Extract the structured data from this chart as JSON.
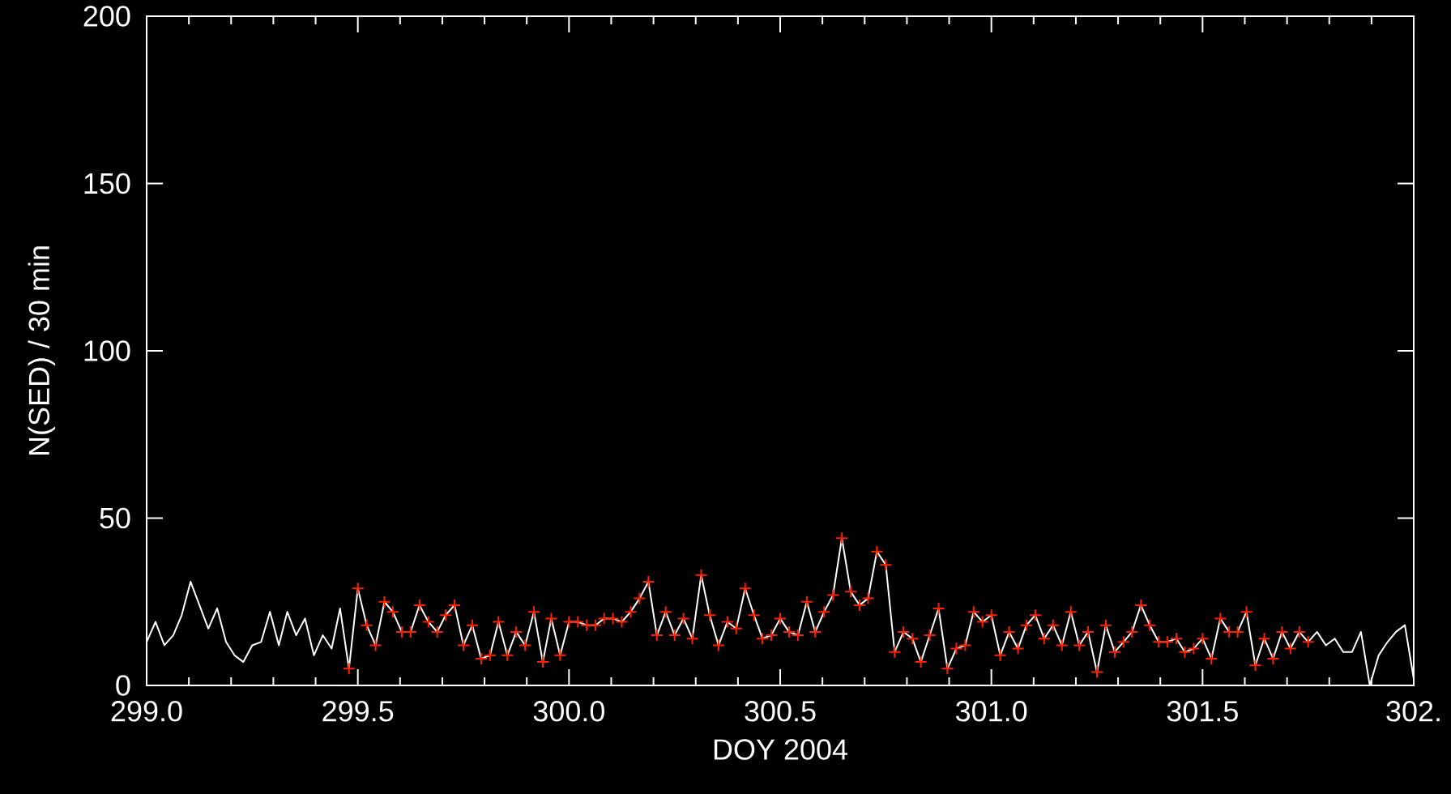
{
  "chart_data": {
    "type": "line",
    "xlabel": "DOY 2004",
    "ylabel": "N(SED) / 30 min",
    "xlim": [
      299,
      302
    ],
    "ylim": [
      0,
      200
    ],
    "xticks": [
      {
        "value": 299,
        "label": "299.0"
      },
      {
        "value": 299.5,
        "label": "299.5"
      },
      {
        "value": 300,
        "label": "300.0"
      },
      {
        "value": 300.5,
        "label": "300.5"
      },
      {
        "value": 301,
        "label": "301.0"
      },
      {
        "value": 301.5,
        "label": "301.5"
      },
      {
        "value": 302,
        "label": "302."
      }
    ],
    "yticks": [
      0,
      50,
      100,
      150,
      200
    ],
    "series": [
      {
        "type": "line",
        "color": "#ffffff",
        "x": [
          299.0,
          299.021,
          299.042,
          299.063,
          299.083,
          299.104,
          299.125,
          299.146,
          299.167,
          299.188,
          299.208,
          299.229,
          299.25,
          299.271,
          299.292,
          299.313,
          299.333,
          299.354,
          299.375,
          299.396,
          299.417,
          299.438,
          299.458,
          299.479,
          299.5,
          299.521,
          299.542,
          299.563,
          299.583,
          299.604,
          299.625,
          299.646,
          299.667,
          299.688,
          299.708,
          299.729,
          299.75,
          299.771,
          299.792,
          299.813,
          299.833,
          299.854,
          299.875,
          299.896,
          299.917,
          299.938,
          299.958,
          299.979,
          300.0,
          300.021,
          300.042,
          300.063,
          300.083,
          300.104,
          300.125,
          300.146,
          300.167,
          300.188,
          300.208,
          300.229,
          300.25,
          300.271,
          300.292,
          300.313,
          300.333,
          300.354,
          300.375,
          300.396,
          300.417,
          300.438,
          300.458,
          300.479,
          300.5,
          300.521,
          300.542,
          300.563,
          300.583,
          300.604,
          300.625,
          300.646,
          300.667,
          300.688,
          300.708,
          300.729,
          300.75,
          300.771,
          300.792,
          300.813,
          300.833,
          300.854,
          300.875,
          300.896,
          300.917,
          300.938,
          300.958,
          300.979,
          301.0,
          301.021,
          301.042,
          301.063,
          301.083,
          301.104,
          301.125,
          301.146,
          301.167,
          301.188,
          301.208,
          301.229,
          301.25,
          301.271,
          301.292,
          301.313,
          301.333,
          301.354,
          301.375,
          301.396,
          301.417,
          301.438,
          301.458,
          301.479,
          301.5,
          301.521,
          301.542,
          301.563,
          301.583,
          301.604,
          301.625,
          301.646,
          301.667,
          301.688,
          301.708,
          301.729,
          301.75,
          301.771,
          301.792,
          301.813,
          301.833,
          301.854,
          301.875,
          301.896,
          301.917,
          301.938,
          301.958,
          301.979,
          302.0
        ],
        "values": [
          13,
          19,
          12,
          15,
          21,
          31,
          24,
          17,
          23,
          13,
          9,
          7,
          12,
          13,
          22,
          12,
          22,
          15,
          20,
          9,
          15,
          11,
          23,
          5,
          29,
          18,
          12,
          25,
          22,
          16,
          16,
          24,
          19,
          16,
          21,
          24,
          12,
          18,
          8,
          9,
          19,
          9,
          16,
          12,
          22,
          7,
          20,
          9,
          19,
          19,
          18,
          18,
          20,
          20,
          19,
          22,
          26,
          31,
          15,
          22,
          15,
          20,
          14,
          33,
          21,
          12,
          19,
          17,
          29,
          21,
          14,
          15,
          20,
          16,
          15,
          25,
          16,
          22,
          27,
          44,
          28,
          24,
          26,
          40,
          36,
          10,
          16,
          14,
          7,
          15,
          23,
          5,
          11,
          12,
          22,
          19,
          21,
          9,
          16,
          11,
          18,
          21,
          14,
          18,
          12,
          22,
          12,
          16,
          4,
          18,
          10,
          13,
          16,
          24,
          18,
          13,
          13,
          14,
          10,
          11,
          14,
          8,
          20,
          16,
          16,
          22,
          6,
          14,
          8,
          16,
          11,
          16,
          13,
          16,
          12,
          14,
          10,
          10,
          16,
          0,
          9,
          13,
          16,
          18,
          2
        ]
      },
      {
        "type": "scatter",
        "color": "#ff2000",
        "marker": "cross",
        "x": [
          299.479,
          299.5,
          299.521,
          299.542,
          299.563,
          299.583,
          299.604,
          299.625,
          299.646,
          299.667,
          299.688,
          299.708,
          299.729,
          299.75,
          299.771,
          299.792,
          299.813,
          299.833,
          299.854,
          299.875,
          299.896,
          299.917,
          299.938,
          299.958,
          299.979,
          300.0,
          300.021,
          300.042,
          300.063,
          300.083,
          300.104,
          300.125,
          300.146,
          300.167,
          300.188,
          300.208,
          300.229,
          300.25,
          300.271,
          300.292,
          300.313,
          300.333,
          300.354,
          300.375,
          300.396,
          300.417,
          300.438,
          300.458,
          300.479,
          300.5,
          300.521,
          300.542,
          300.563,
          300.583,
          300.604,
          300.625,
          300.646,
          300.667,
          300.688,
          300.708,
          300.729,
          300.75,
          300.771,
          300.792,
          300.813,
          300.833,
          300.854,
          300.875,
          300.896,
          300.917,
          300.938,
          300.958,
          300.979,
          301.0,
          301.021,
          301.042,
          301.063,
          301.083,
          301.104,
          301.125,
          301.146,
          301.167,
          301.188,
          301.208,
          301.229,
          301.25,
          301.271,
          301.292,
          301.313,
          301.333,
          301.354,
          301.375,
          301.396,
          301.417,
          301.438,
          301.458,
          301.479,
          301.5,
          301.521,
          301.542,
          301.563,
          301.583,
          301.604,
          301.625,
          301.646,
          301.667,
          301.688,
          301.708,
          301.729,
          301.75
        ],
        "values": [
          5,
          29,
          18,
          12,
          25,
          22,
          16,
          16,
          24,
          19,
          16,
          21,
          24,
          12,
          18,
          8,
          9,
          19,
          9,
          16,
          12,
          22,
          7,
          20,
          9,
          19,
          19,
          18,
          18,
          20,
          20,
          19,
          22,
          26,
          31,
          15,
          22,
          15,
          20,
          14,
          33,
          21,
          12,
          19,
          17,
          29,
          21,
          14,
          15,
          20,
          16,
          15,
          25,
          16,
          22,
          27,
          44,
          28,
          24,
          26,
          40,
          36,
          10,
          16,
          14,
          7,
          15,
          23,
          5,
          11,
          12,
          22,
          19,
          21,
          9,
          16,
          11,
          18,
          21,
          14,
          18,
          12,
          22,
          12,
          16,
          4,
          18,
          10,
          13,
          16,
          24,
          18,
          13,
          13,
          14,
          10,
          11,
          14,
          8,
          20,
          16,
          16,
          22,
          6,
          14,
          8,
          16,
          11,
          16,
          13
        ]
      }
    ]
  }
}
